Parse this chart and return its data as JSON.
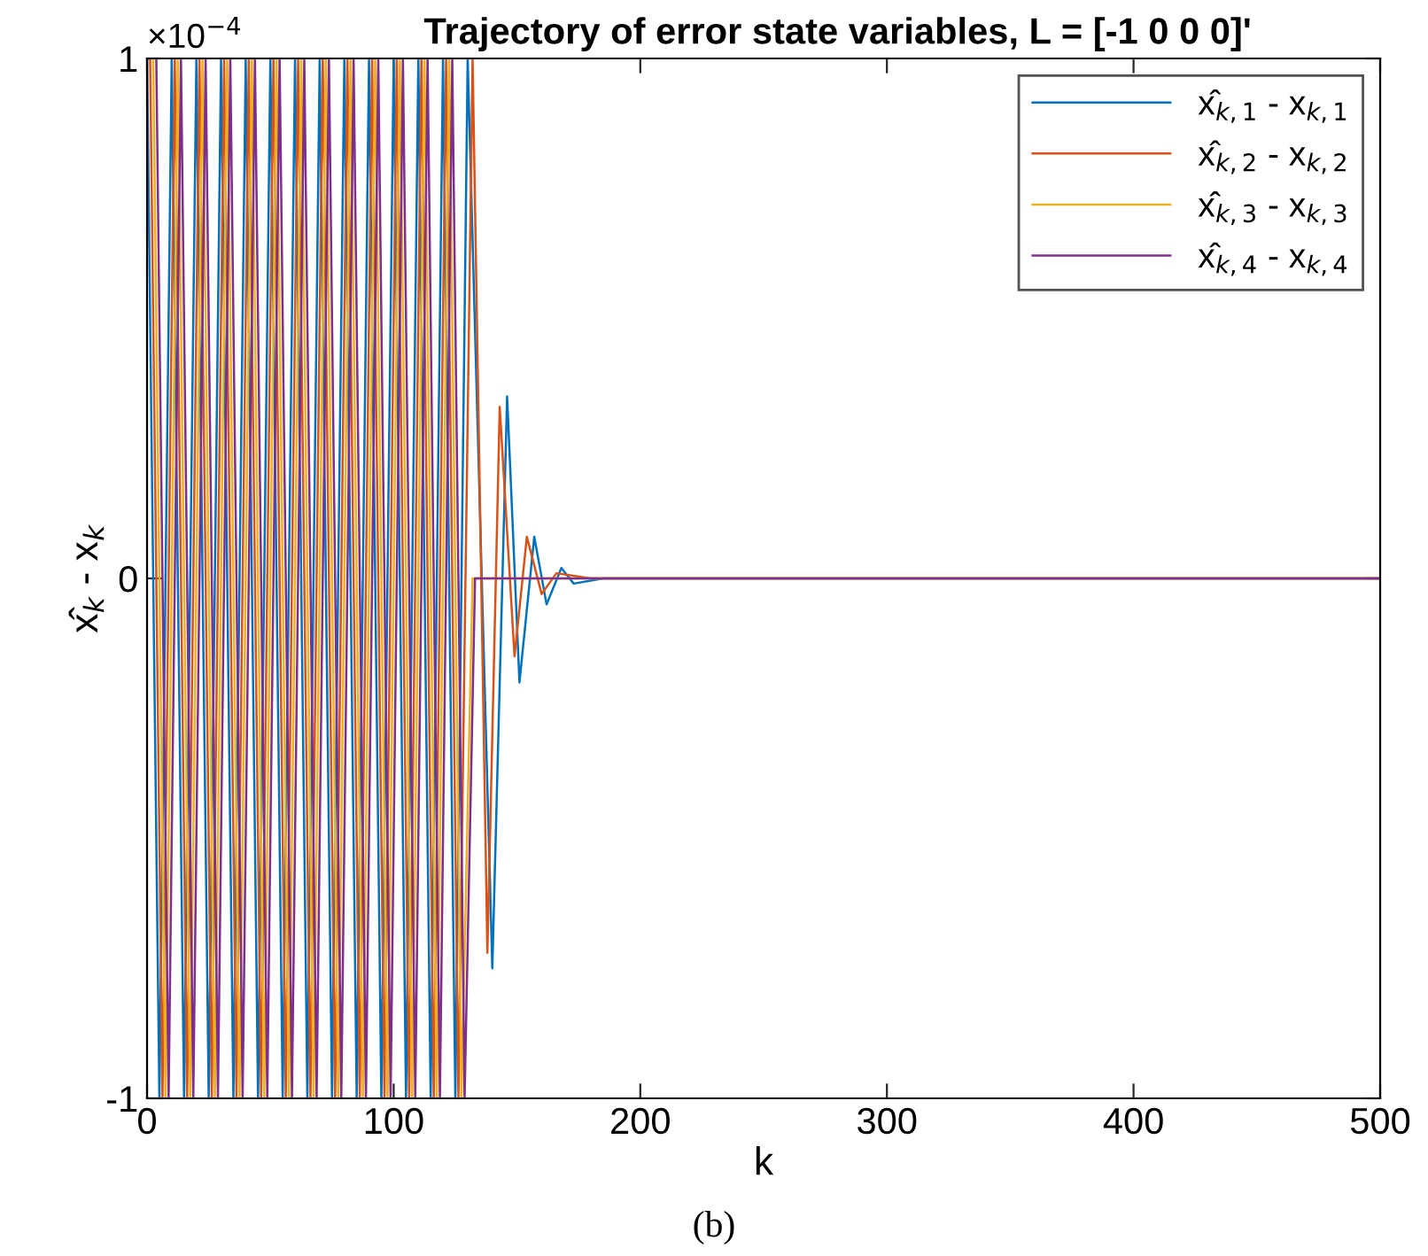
{
  "chart_data": {
    "type": "line",
    "title": "Trajectory of error state variables, L = [-1 0 0 0]'",
    "xlabel": "k",
    "ylabel": "x̂$_{k}$ - x$_{k}$",
    "annotations": [
      "×10$^{−4}$",
      "(b)"
    ],
    "xlim": [
      0,
      500
    ],
    "ylim": [
      -1,
      1
    ],
    "xticks": [
      0,
      100,
      200,
      300,
      400,
      500
    ],
    "yticks": [
      -1,
      0,
      1
    ],
    "grid": false,
    "legend": "top right",
    "line_style": "solid",
    "marker": "none",
    "series": [
      {
        "name": "x̂$_{k,1}$ - x$_{k,1}$",
        "color": "#0072bd",
        "x": [
          0,
          5,
          10,
          15,
          20,
          25,
          30,
          35,
          40,
          45,
          50,
          55,
          60,
          65,
          70,
          75,
          80,
          85,
          90,
          95,
          100,
          105,
          110,
          115,
          120,
          125,
          130,
          140,
          146,
          151,
          157,
          162,
          168,
          173,
          185,
          500
        ],
        "values": [
          1,
          -1,
          1,
          -1,
          1,
          -1,
          1,
          -1,
          1,
          -1,
          1,
          -1,
          1,
          -1,
          1,
          -1,
          1,
          -1,
          1,
          -1,
          1,
          -1,
          1,
          -1,
          1,
          -1,
          1,
          -0.75,
          0.35,
          -0.2,
          0.08,
          -0.05,
          0.02,
          -0.01,
          0,
          0
        ]
      },
      {
        "name": "x̂$_{k,2}$ - x$_{k,2}$",
        "color": "#d95319",
        "x": [
          1.25,
          6.25,
          11.25,
          16.25,
          21.25,
          26.25,
          31.25,
          36.25,
          41.25,
          46.25,
          51.25,
          56.25,
          61.25,
          66.25,
          71.25,
          76.25,
          81.25,
          86.25,
          91.25,
          96.25,
          101.25,
          106.25,
          111.25,
          116.25,
          121.25,
          126.25,
          132,
          138,
          143,
          149,
          154,
          160,
          166,
          180,
          500
        ],
        "values": [
          1,
          -1,
          1,
          -1,
          1,
          -1,
          1,
          -1,
          1,
          -1,
          1,
          -1,
          1,
          -1,
          1,
          -1,
          1,
          -1,
          1,
          -1,
          1,
          -1,
          1,
          -1,
          1,
          -1,
          1,
          -0.72,
          0.33,
          -0.15,
          0.08,
          -0.03,
          0.01,
          0,
          0
        ]
      },
      {
        "name": "x̂$_{k,3}$ - x$_{k,3}$",
        "color": "#edb120",
        "x": [
          2.5,
          7.5,
          12.5,
          17.5,
          22.5,
          27.5,
          32.5,
          37.5,
          42.5,
          47.5,
          52.5,
          57.5,
          62.5,
          67.5,
          72.5,
          77.5,
          82.5,
          87.5,
          92.5,
          97.5,
          102.5,
          107.5,
          112.5,
          117.5,
          122.5,
          127.5,
          132,
          500
        ],
        "values": [
          1,
          -1,
          1,
          -1,
          1,
          -1,
          1,
          -1,
          1,
          -1,
          1,
          -1,
          1,
          -1,
          1,
          -1,
          1,
          -1,
          1,
          -1,
          1,
          -1,
          1,
          -1,
          1,
          -1,
          0,
          0
        ]
      },
      {
        "name": "x̂$_{k,4}$ - x$_{k,4}$",
        "color": "#7e2f8e",
        "x": [
          3.75,
          8.75,
          13.75,
          18.75,
          23.75,
          28.75,
          33.75,
          38.75,
          43.75,
          48.75,
          53.75,
          58.75,
          63.75,
          68.75,
          73.75,
          78.75,
          83.75,
          88.75,
          93.75,
          98.75,
          103.75,
          108.75,
          113.75,
          118.75,
          123.75,
          128.75,
          133,
          500
        ],
        "values": [
          1,
          -1,
          1,
          -1,
          1,
          -1,
          1,
          -1,
          1,
          -1,
          1,
          -1,
          1,
          -1,
          1,
          -1,
          1,
          -1,
          1,
          -1,
          1,
          -1,
          1,
          -1,
          1,
          -1,
          0,
          0
        ]
      }
    ]
  }
}
